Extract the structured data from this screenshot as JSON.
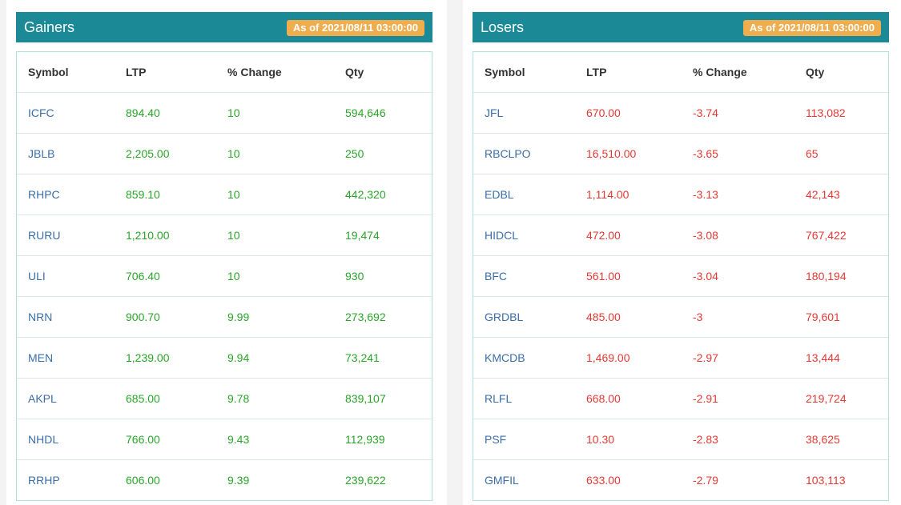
{
  "gainers": {
    "title": "Gainers",
    "as_of": "As of 2021/08/11 03:00:00",
    "columns": [
      "Symbol",
      "LTP",
      "% Change",
      "Qty"
    ],
    "rows": [
      {
        "symbol": "ICFC",
        "ltp": "894.40",
        "change": "10",
        "qty": "594,646"
      },
      {
        "symbol": "JBLB",
        "ltp": "2,205.00",
        "change": "10",
        "qty": "250"
      },
      {
        "symbol": "RHPC",
        "ltp": "859.10",
        "change": "10",
        "qty": "442,320"
      },
      {
        "symbol": "RURU",
        "ltp": "1,210.00",
        "change": "10",
        "qty": "19,474"
      },
      {
        "symbol": "ULI",
        "ltp": "706.40",
        "change": "10",
        "qty": "930"
      },
      {
        "symbol": "NRN",
        "ltp": "900.70",
        "change": "9.99",
        "qty": "273,692"
      },
      {
        "symbol": "MEN",
        "ltp": "1,239.00",
        "change": "9.94",
        "qty": "73,241"
      },
      {
        "symbol": "AKPL",
        "ltp": "685.00",
        "change": "9.78",
        "qty": "839,107"
      },
      {
        "symbol": "NHDL",
        "ltp": "766.00",
        "change": "9.43",
        "qty": "112,939"
      },
      {
        "symbol": "RRHP",
        "ltp": "606.00",
        "change": "9.39",
        "qty": "239,622"
      }
    ]
  },
  "losers": {
    "title": "Losers",
    "as_of": "As of 2021/08/11 03:00:00",
    "columns": [
      "Symbol",
      "LTP",
      "% Change",
      "Qty"
    ],
    "rows": [
      {
        "symbol": "JFL",
        "ltp": "670.00",
        "change": "-3.74",
        "qty": "113,082"
      },
      {
        "symbol": "RBCLPO",
        "ltp": "16,510.00",
        "change": "-3.65",
        "qty": "65"
      },
      {
        "symbol": "EDBL",
        "ltp": "1,114.00",
        "change": "-3.13",
        "qty": "42,143"
      },
      {
        "symbol": "HIDCL",
        "ltp": "472.00",
        "change": "-3.08",
        "qty": "767,422"
      },
      {
        "symbol": "BFC",
        "ltp": "561.00",
        "change": "-3.04",
        "qty": "180,194"
      },
      {
        "symbol": "GRDBL",
        "ltp": "485.00",
        "change": "-3",
        "qty": "79,601"
      },
      {
        "symbol": "KMCDB",
        "ltp": "1,469.00",
        "change": "-2.97",
        "qty": "13,444"
      },
      {
        "symbol": "RLFL",
        "ltp": "668.00",
        "change": "-2.91",
        "qty": "219,724"
      },
      {
        "symbol": "PSF",
        "ltp": "10.30",
        "change": "-2.83",
        "qty": "38,625"
      },
      {
        "symbol": "GMFIL",
        "ltp": "633.00",
        "change": "-2.79",
        "qty": "103,113"
      }
    ]
  },
  "colors": {
    "header_bg": "#1b8a96",
    "badge_bg": "#f0ad4e",
    "symbol_link": "#3b6ea8",
    "gain": "#2aa52a",
    "loss": "#e53935"
  }
}
